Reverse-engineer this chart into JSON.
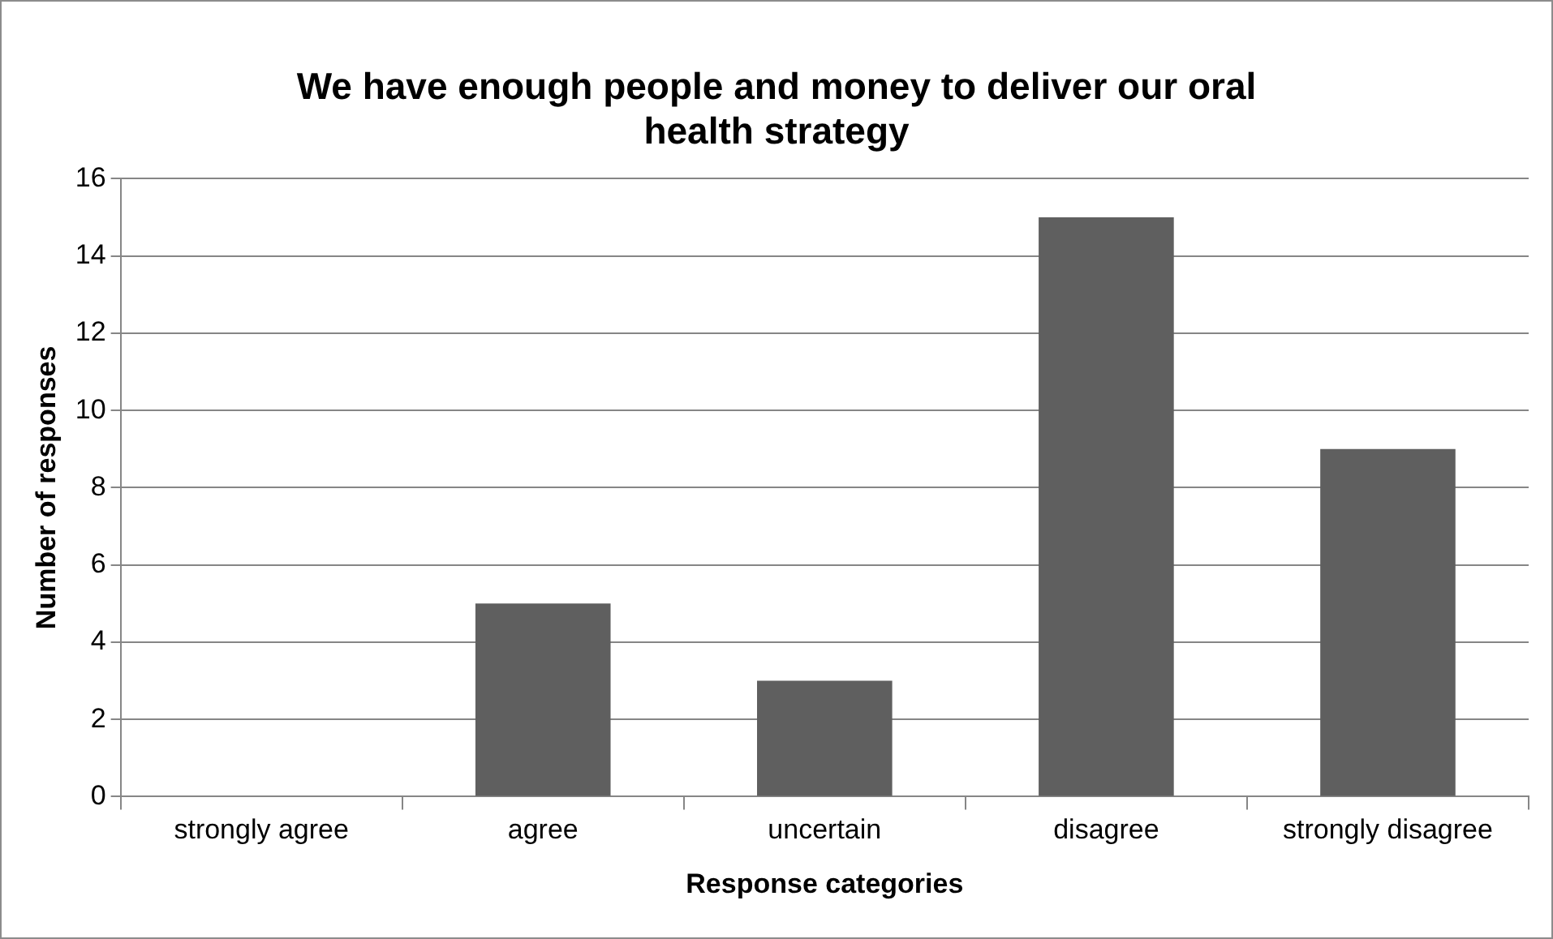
{
  "chart_data": {
    "type": "bar",
    "title": "We have enough people and money to deliver our oral health strategy",
    "xlabel": "Response categories",
    "ylabel": "Number of responses",
    "categories": [
      "strongly agree",
      "agree",
      "uncertain",
      "disagree",
      "strongly disagree"
    ],
    "values": [
      0,
      5,
      3,
      15,
      9
    ],
    "color": "#5f5f5f",
    "ylim": [
      0,
      16
    ],
    "yticks": [
      0,
      2,
      4,
      6,
      8,
      10,
      12,
      14,
      16
    ],
    "grid": "y"
  }
}
